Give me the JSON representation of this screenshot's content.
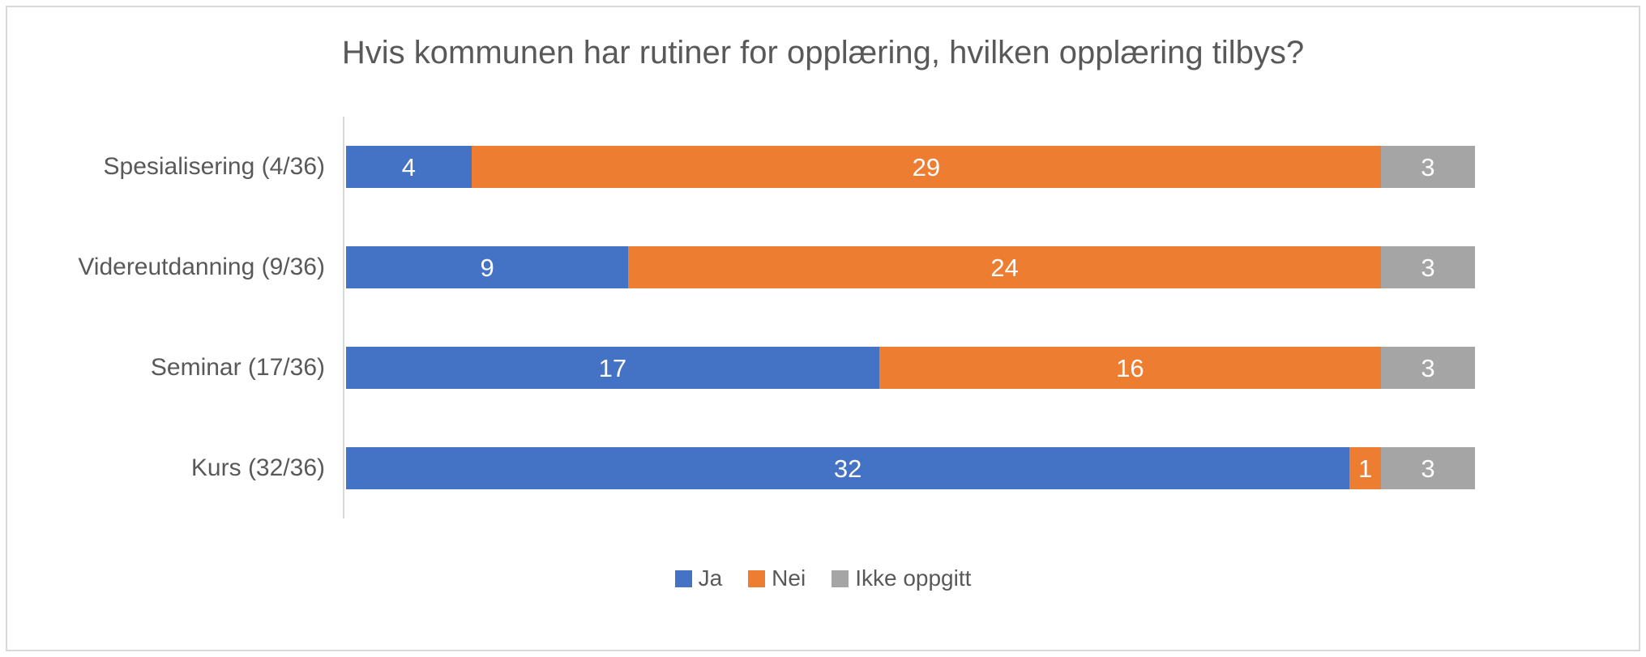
{
  "chart_data": {
    "type": "bar",
    "orientation": "horizontal",
    "stacked": true,
    "title": "Hvis kommunen har rutiner for opplæring, hvilken opplæring tilbys?",
    "categories": [
      "Spesialisering (4/36)",
      "Videreutdanning (9/36)",
      "Seminar (17/36)",
      "Kurs (32/36)"
    ],
    "series": [
      {
        "name": "Ja",
        "color": "#4472C4",
        "values": [
          4,
          9,
          17,
          32
        ]
      },
      {
        "name": "Nei",
        "color": "#ED7D31",
        "values": [
          29,
          24,
          16,
          1
        ]
      },
      {
        "name": "Ikke oppgitt",
        "color": "#A5A5A5",
        "values": [
          3,
          3,
          3,
          3
        ]
      }
    ],
    "x_max": 36,
    "data_labels": true,
    "data_label_color": "#FFFFFF",
    "grid": false,
    "legend_position": "bottom",
    "axis_line_color": "#D9D9D9",
    "text_color": "#595959",
    "border_color": "#D9D9D9",
    "background_color": "#FFFFFF"
  }
}
